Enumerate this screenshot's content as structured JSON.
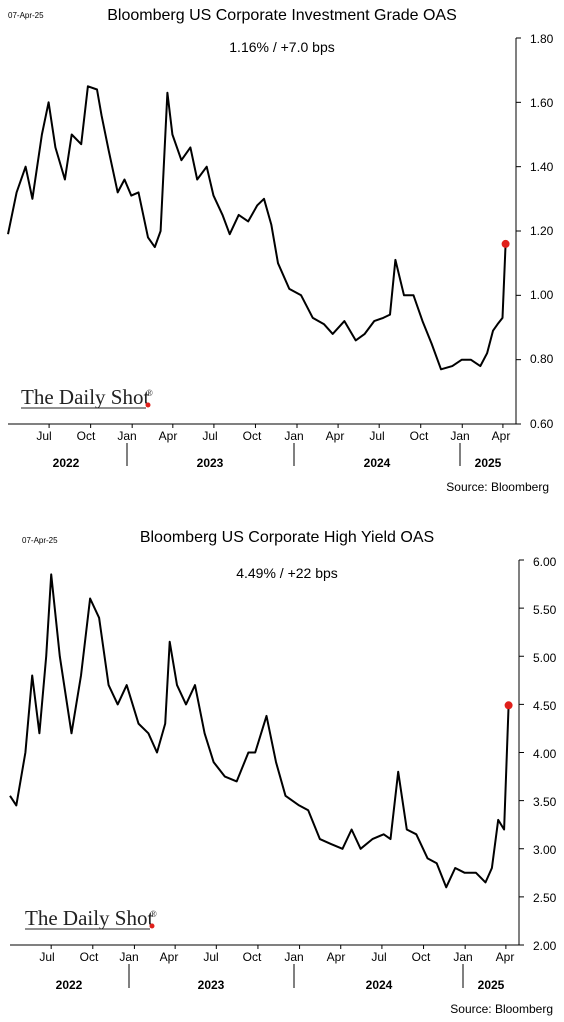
{
  "logo": {
    "text": "The Daily Shot",
    "reg": "®",
    "dot_color": "#e0201b"
  },
  "charts": [
    {
      "title": "Bloomberg US Corporate Investment Grade OAS",
      "date": "07-Apr-25",
      "subtitle": "1.16%  /  +7.0 bps",
      "source": "Source: Bloomberg",
      "months": [
        "Jul",
        "Oct",
        "Jan",
        "Apr",
        "Jul",
        "Oct",
        "Jan",
        "Apr",
        "Jul",
        "Oct",
        "Jan",
        "Apr"
      ],
      "years": [
        "2022",
        "2023",
        "2024",
        "2025"
      ],
      "y_ticks": [
        "1.80",
        "1.60",
        "1.40",
        "1.20",
        "1.00",
        "0.80",
        "0.60"
      ]
    },
    {
      "title": "Bloomberg US Corporate High Yield OAS",
      "date": "07-Apr-25",
      "subtitle": "4.49%  /  +22 bps",
      "source": "Source: Bloomberg",
      "months": [
        "Jul",
        "Oct",
        "Jan",
        "Apr",
        "Jul",
        "Oct",
        "Jan",
        "Apr",
        "Jul",
        "Oct",
        "Jan",
        "Apr"
      ],
      "years": [
        "2022",
        "2023",
        "2024",
        "2025"
      ],
      "y_ticks": [
        "6.00",
        "5.50",
        "5.00",
        "4.50",
        "4.00",
        "3.50",
        "3.00",
        "2.50",
        "2.00"
      ]
    }
  ],
  "chart_data": [
    {
      "type": "line",
      "title": "Bloomberg US Corporate Investment Grade OAS",
      "subtitle": "1.16%  /  +7.0 bps",
      "ylim": [
        0.6,
        1.8
      ],
      "xlim": [
        "2022-04-01",
        "2025-04-30"
      ],
      "grid": false,
      "highlight_color": "#e0201b",
      "last_value": 1.16,
      "series": [
        {
          "name": "",
          "color": "#000000",
          "points": [
            [
              "2022-04-01",
              1.19
            ],
            [
              "2022-04-20",
              1.32
            ],
            [
              "2022-05-10",
              1.4
            ],
            [
              "2022-05-25",
              1.3
            ],
            [
              "2022-06-15",
              1.5
            ],
            [
              "2022-06-30",
              1.6
            ],
            [
              "2022-07-15",
              1.46
            ],
            [
              "2022-08-05",
              1.36
            ],
            [
              "2022-08-20",
              1.5
            ],
            [
              "2022-09-10",
              1.47
            ],
            [
              "2022-09-25",
              1.65
            ],
            [
              "2022-10-15",
              1.64
            ],
            [
              "2022-10-25",
              1.56
            ],
            [
              "2022-11-10",
              1.45
            ],
            [
              "2022-11-30",
              1.32
            ],
            [
              "2022-12-15",
              1.36
            ],
            [
              "2022-12-30",
              1.31
            ],
            [
              "2023-01-15",
              1.32
            ],
            [
              "2023-02-05",
              1.18
            ],
            [
              "2023-02-20",
              1.15
            ],
            [
              "2023-03-05",
              1.2
            ],
            [
              "2023-03-20",
              1.63
            ],
            [
              "2023-03-31",
              1.5
            ],
            [
              "2023-04-20",
              1.42
            ],
            [
              "2023-05-10",
              1.46
            ],
            [
              "2023-05-25",
              1.36
            ],
            [
              "2023-06-15",
              1.4
            ],
            [
              "2023-06-30",
              1.31
            ],
            [
              "2023-07-20",
              1.25
            ],
            [
              "2023-08-05",
              1.19
            ],
            [
              "2023-08-25",
              1.25
            ],
            [
              "2023-09-15",
              1.23
            ],
            [
              "2023-10-05",
              1.28
            ],
            [
              "2023-10-20",
              1.3
            ],
            [
              "2023-11-05",
              1.22
            ],
            [
              "2023-11-20",
              1.1
            ],
            [
              "2023-12-15",
              1.02
            ],
            [
              "2024-01-10",
              1.0
            ],
            [
              "2024-02-05",
              0.93
            ],
            [
              "2024-03-01",
              0.91
            ],
            [
              "2024-03-20",
              0.88
            ],
            [
              "2024-04-15",
              0.92
            ],
            [
              "2024-05-10",
              0.86
            ],
            [
              "2024-05-30",
              0.88
            ],
            [
              "2024-06-20",
              0.92
            ],
            [
              "2024-07-10",
              0.93
            ],
            [
              "2024-07-25",
              0.94
            ],
            [
              "2024-08-06",
              1.11
            ],
            [
              "2024-08-25",
              1.0
            ],
            [
              "2024-09-15",
              1.0
            ],
            [
              "2024-10-05",
              0.92
            ],
            [
              "2024-10-25",
              0.85
            ],
            [
              "2024-11-15",
              0.77
            ],
            [
              "2024-12-10",
              0.78
            ],
            [
              "2024-12-31",
              0.8
            ],
            [
              "2025-01-20",
              0.8
            ],
            [
              "2025-02-10",
              0.78
            ],
            [
              "2025-02-25",
              0.82
            ],
            [
              "2025-03-10",
              0.89
            ],
            [
              "2025-03-20",
              0.91
            ],
            [
              "2025-03-31",
              0.93
            ],
            [
              "2025-04-07",
              1.16
            ]
          ]
        }
      ]
    },
    {
      "type": "line",
      "title": "Bloomberg US Corporate High Yield OAS",
      "subtitle": "4.49%  /  +22 bps",
      "ylim": [
        2.0,
        6.0
      ],
      "xlim": [
        "2022-04-01",
        "2025-04-30"
      ],
      "grid": false,
      "highlight_color": "#e0201b",
      "last_value": 4.49,
      "series": [
        {
          "name": "",
          "color": "#000000",
          "points": [
            [
              "2022-04-01",
              3.55
            ],
            [
              "2022-04-15",
              3.45
            ],
            [
              "2022-05-05",
              4.0
            ],
            [
              "2022-05-20",
              4.8
            ],
            [
              "2022-06-05",
              4.2
            ],
            [
              "2022-06-20",
              5.0
            ],
            [
              "2022-07-01",
              5.85
            ],
            [
              "2022-07-20",
              5.0
            ],
            [
              "2022-08-15",
              4.2
            ],
            [
              "2022-09-05",
              4.8
            ],
            [
              "2022-09-25",
              5.6
            ],
            [
              "2022-10-15",
              5.4
            ],
            [
              "2022-11-05",
              4.7
            ],
            [
              "2022-11-25",
              4.5
            ],
            [
              "2022-12-15",
              4.7
            ],
            [
              "2023-01-10",
              4.3
            ],
            [
              "2023-02-01",
              4.2
            ],
            [
              "2023-02-20",
              4.0
            ],
            [
              "2023-03-10",
              4.3
            ],
            [
              "2023-03-20",
              5.15
            ],
            [
              "2023-04-05",
              4.7
            ],
            [
              "2023-04-25",
              4.5
            ],
            [
              "2023-05-15",
              4.7
            ],
            [
              "2023-06-05",
              4.2
            ],
            [
              "2023-06-25",
              3.9
            ],
            [
              "2023-07-20",
              3.75
            ],
            [
              "2023-08-15",
              3.7
            ],
            [
              "2023-09-10",
              4.0
            ],
            [
              "2023-09-25",
              4.0
            ],
            [
              "2023-10-20",
              4.38
            ],
            [
              "2023-11-10",
              3.9
            ],
            [
              "2023-12-01",
              3.55
            ],
            [
              "2023-12-31",
              3.45
            ],
            [
              "2024-01-20",
              3.4
            ],
            [
              "2024-02-15",
              3.1
            ],
            [
              "2024-03-10",
              3.05
            ],
            [
              "2024-04-05",
              3.0
            ],
            [
              "2024-04-25",
              3.2
            ],
            [
              "2024-05-15",
              3.0
            ],
            [
              "2024-06-10",
              3.1
            ],
            [
              "2024-07-05",
              3.15
            ],
            [
              "2024-07-20",
              3.1
            ],
            [
              "2024-08-06",
              3.8
            ],
            [
              "2024-08-25",
              3.2
            ],
            [
              "2024-09-15",
              3.15
            ],
            [
              "2024-10-10",
              2.9
            ],
            [
              "2024-10-30",
              2.85
            ],
            [
              "2024-11-20",
              2.6
            ],
            [
              "2024-12-10",
              2.8
            ],
            [
              "2024-12-31",
              2.75
            ],
            [
              "2025-01-25",
              2.75
            ],
            [
              "2025-02-15",
              2.65
            ],
            [
              "2025-03-01",
              2.8
            ],
            [
              "2025-03-15",
              3.3
            ],
            [
              "2025-03-28",
              3.2
            ],
            [
              "2025-04-07",
              4.49
            ]
          ]
        }
      ]
    }
  ]
}
